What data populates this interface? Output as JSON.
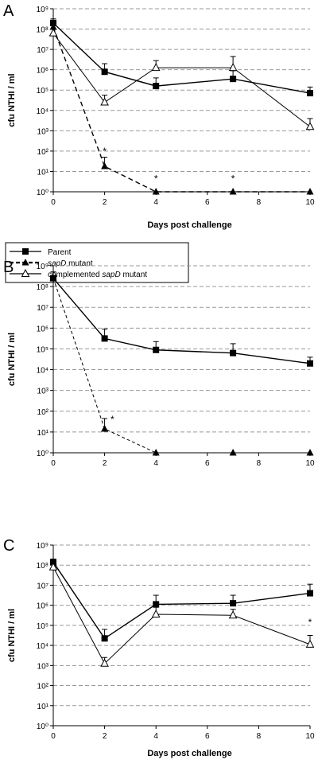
{
  "legend": {
    "items": [
      {
        "label_pre": "Parent",
        "label_italic": "",
        "label_post": "",
        "series_key": "parent"
      },
      {
        "label_pre": "",
        "label_italic": "sapD",
        "label_post": " mutant",
        "series_key": "sapd"
      },
      {
        "label_pre": "complemented ",
        "label_italic": "sapD",
        "label_post": " mutant",
        "series_key": "comp"
      }
    ]
  },
  "chart_data": [
    {
      "panel": "A",
      "type": "line",
      "ylabel": "cfu NTHI / ml",
      "xlabel": "Days post challenge",
      "log_y": true,
      "ylim_exp": [
        0,
        9
      ],
      "y_tick_labels": [
        "10⁰",
        "10¹",
        "10²",
        "10³",
        "10⁴",
        "10⁵",
        "10⁶",
        "10⁷",
        "10⁸",
        "10⁹"
      ],
      "xlim": [
        0,
        10
      ],
      "x_ticks": [
        0,
        2,
        4,
        6,
        8,
        10
      ],
      "grid": "horizontal-dashed",
      "series": [
        {
          "key": "parent",
          "x": [
            0,
            2,
            4,
            7,
            10
          ],
          "y_exp": [
            8.3,
            5.9,
            5.2,
            5.55,
            4.85
          ],
          "err_exp": [
            0.2,
            0.4,
            0.4,
            0.4,
            0.3
          ]
        },
        {
          "key": "sapd",
          "x": [
            0,
            2,
            4,
            7,
            10
          ],
          "y_exp": [
            8.1,
            1.25,
            0,
            0,
            0
          ],
          "err_exp": [
            0.2,
            0.45,
            0,
            0,
            0
          ]
        },
        {
          "key": "comp",
          "x": [
            0,
            2,
            4,
            7,
            10
          ],
          "y_exp": [
            7.8,
            4.4,
            6.1,
            6.1,
            3.2
          ],
          "err_exp": [
            0.2,
            0.35,
            0.35,
            0.55,
            0.4
          ]
        }
      ],
      "annotations": [
        {
          "text": "*",
          "x": 2,
          "y_exp": 2.0
        },
        {
          "text": "*",
          "x": 4,
          "y_exp": 0.65
        },
        {
          "text": "*",
          "x": 7,
          "y_exp": 0.65
        }
      ]
    },
    {
      "panel": "B",
      "type": "line",
      "ylabel": "cfu NTHI / ml",
      "xlabel": "",
      "log_y": true,
      "ylim_exp": [
        0,
        9
      ],
      "y_tick_labels": [
        "10⁰",
        "10¹",
        "10²",
        "10³",
        "10⁴",
        "10⁵",
        "10⁶",
        "10⁷",
        "10⁸",
        "10⁹"
      ],
      "xlim": [
        0,
        10
      ],
      "x_ticks": [
        0,
        2,
        4,
        6,
        8,
        10
      ],
      "grid": "horizontal-dashed",
      "series": [
        {
          "key": "parent",
          "x": [
            0,
            2,
            4,
            7,
            10
          ],
          "y_exp": [
            8.4,
            5.5,
            4.95,
            4.8,
            4.3
          ],
          "err_exp": [
            0.3,
            0.45,
            0.4,
            0.45,
            0.3
          ]
        },
        {
          "key": "sapd",
          "x": [
            0,
            2,
            4,
            7,
            10
          ],
          "y_exp": [
            8.4,
            1.15,
            0,
            0,
            0
          ],
          "err_exp": [
            0.3,
            0.5,
            0,
            0,
            0
          ]
        }
      ],
      "annotations": [
        {
          "text": "*",
          "x": 2.3,
          "y_exp": 1.6
        }
      ]
    },
    {
      "panel": "C",
      "type": "line",
      "ylabel": "cfu NTHI / ml",
      "xlabel": "Days post challenge",
      "log_y": true,
      "ylim_exp": [
        0,
        9
      ],
      "y_tick_labels": [
        "10⁰",
        "10¹",
        "10²",
        "10³",
        "10⁴",
        "10⁵",
        "10⁶",
        "10⁷",
        "10⁸",
        "10⁹"
      ],
      "xlim": [
        0,
        10
      ],
      "x_ticks": [
        0,
        2,
        4,
        6,
        8,
        10
      ],
      "grid": "horizontal-dashed",
      "series": [
        {
          "key": "parent",
          "x": [
            0,
            2,
            4,
            7,
            10
          ],
          "y_exp": [
            8.15,
            4.35,
            6.05,
            6.1,
            6.6
          ],
          "err_exp": [
            0.15,
            0.45,
            0.45,
            0.4,
            0.45
          ]
        },
        {
          "key": "comp",
          "x": [
            0,
            2,
            4,
            7,
            10
          ],
          "y_exp": [
            7.9,
            3.1,
            5.55,
            5.5,
            4.05
          ],
          "err_exp": [
            0.15,
            0.3,
            0.35,
            0.3,
            0.45
          ]
        }
      ],
      "annotations": [
        {
          "text": "*",
          "x": 10,
          "y_exp": 5.15
        }
      ]
    }
  ]
}
